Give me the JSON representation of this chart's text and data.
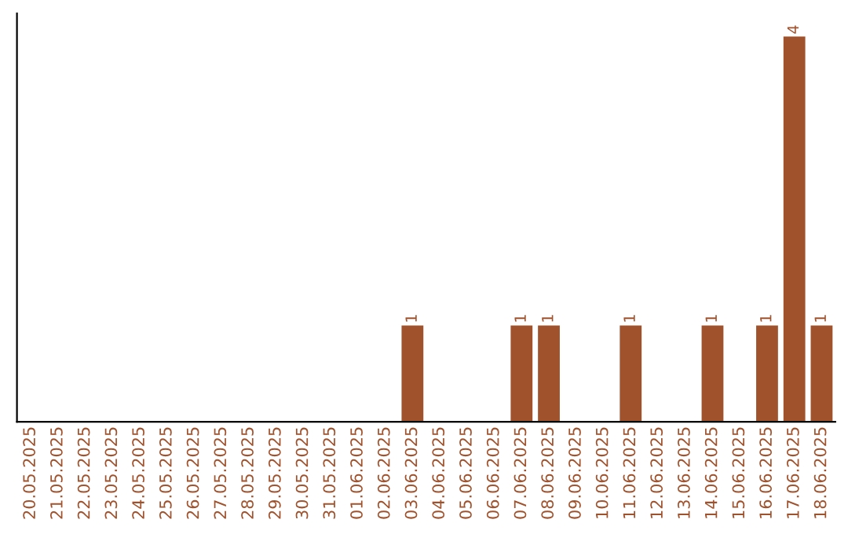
{
  "chart_data": {
    "type": "bar",
    "categories": [
      "20.05.2025",
      "21.05.2025",
      "22.05.2025",
      "23.05.2025",
      "24.05.2025",
      "25.05.2025",
      "26.05.2025",
      "27.05.2025",
      "28.05.2025",
      "29.05.2025",
      "30.05.2025",
      "31.05.2025",
      "01.06.2025",
      "02.06.2025",
      "03.06.2025",
      "04.06.2025",
      "05.06.2025",
      "06.06.2025",
      "07.06.2025",
      "08.06.2025",
      "09.06.2025",
      "10.06.2025",
      "11.06.2025",
      "12.06.2025",
      "13.06.2025",
      "14.06.2025",
      "15.06.2025",
      "16.06.2025",
      "17.06.2025",
      "18.06.2025"
    ],
    "values": [
      null,
      null,
      null,
      null,
      null,
      null,
      null,
      null,
      null,
      null,
      null,
      null,
      null,
      null,
      1,
      null,
      null,
      null,
      1,
      1,
      null,
      null,
      1,
      null,
      null,
      1,
      null,
      1,
      4,
      1
    ],
    "data_labels": true,
    "color": "#a0522d",
    "tick_labels": "x",
    "grid": false,
    "legend": false
  }
}
